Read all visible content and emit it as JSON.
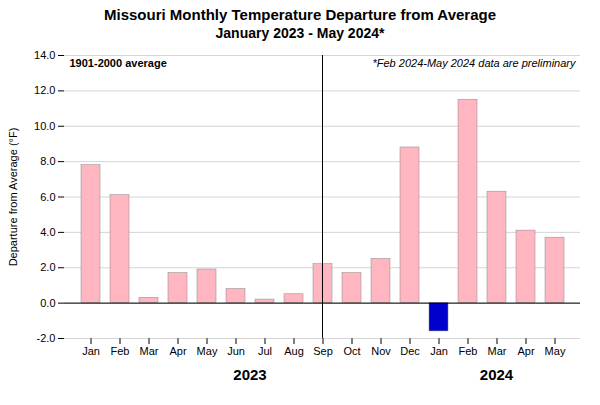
{
  "chart_data": {
    "type": "bar",
    "title": "Missouri Monthly Temperature Departure from Average",
    "subtitle": "January 2023 - May 2024*",
    "ylabel": "Departure from Average (°F)",
    "annotations": [
      "1901-2000 average",
      "*Feb 2024-May 2024 data are preliminary"
    ],
    "group_labels": [
      "2023",
      "2024"
    ],
    "categories": [
      "Jan",
      "Feb",
      "Mar",
      "Apr",
      "May",
      "Jun",
      "Jul",
      "Aug",
      "Sep",
      "Oct",
      "Nov",
      "Dec",
      "Jan",
      "Feb",
      "Mar",
      "Apr",
      "May"
    ],
    "values": [
      7.8,
      6.1,
      0.3,
      1.7,
      1.9,
      0.8,
      0.2,
      0.5,
      2.2,
      1.7,
      2.5,
      8.8,
      -1.6,
      11.5,
      6.3,
      4.1,
      3.7
    ],
    "colors": [
      "#FFB6C1",
      "#FFB6C1",
      "#FFB6C1",
      "#FFB6C1",
      "#FFB6C1",
      "#FFB6C1",
      "#FFB6C1",
      "#FFB6C1",
      "#FFB6C1",
      "#FFB6C1",
      "#FFB6C1",
      "#FFB6C1",
      "#0000CC",
      "#FFB6C1",
      "#FFB6C1",
      "#FFB6C1",
      "#FFB6C1"
    ],
    "ylim": [
      -2.0,
      14.0
    ],
    "yticks": [
      {
        "value": -2.0,
        "label": "-2.0"
      },
      {
        "value": 0.0,
        "label": "0.0"
      },
      {
        "value": 2.0,
        "label": "2.0"
      },
      {
        "value": 4.0,
        "label": "4.0"
      },
      {
        "value": 6.0,
        "label": "6.0"
      },
      {
        "value": 8.0,
        "label": "8.0"
      },
      {
        "value": 10.0,
        "label": "10.0"
      },
      {
        "value": 12.0,
        "label": "12.0"
      },
      {
        "value": 14.0,
        "label": "14.0"
      }
    ],
    "grid": true
  }
}
